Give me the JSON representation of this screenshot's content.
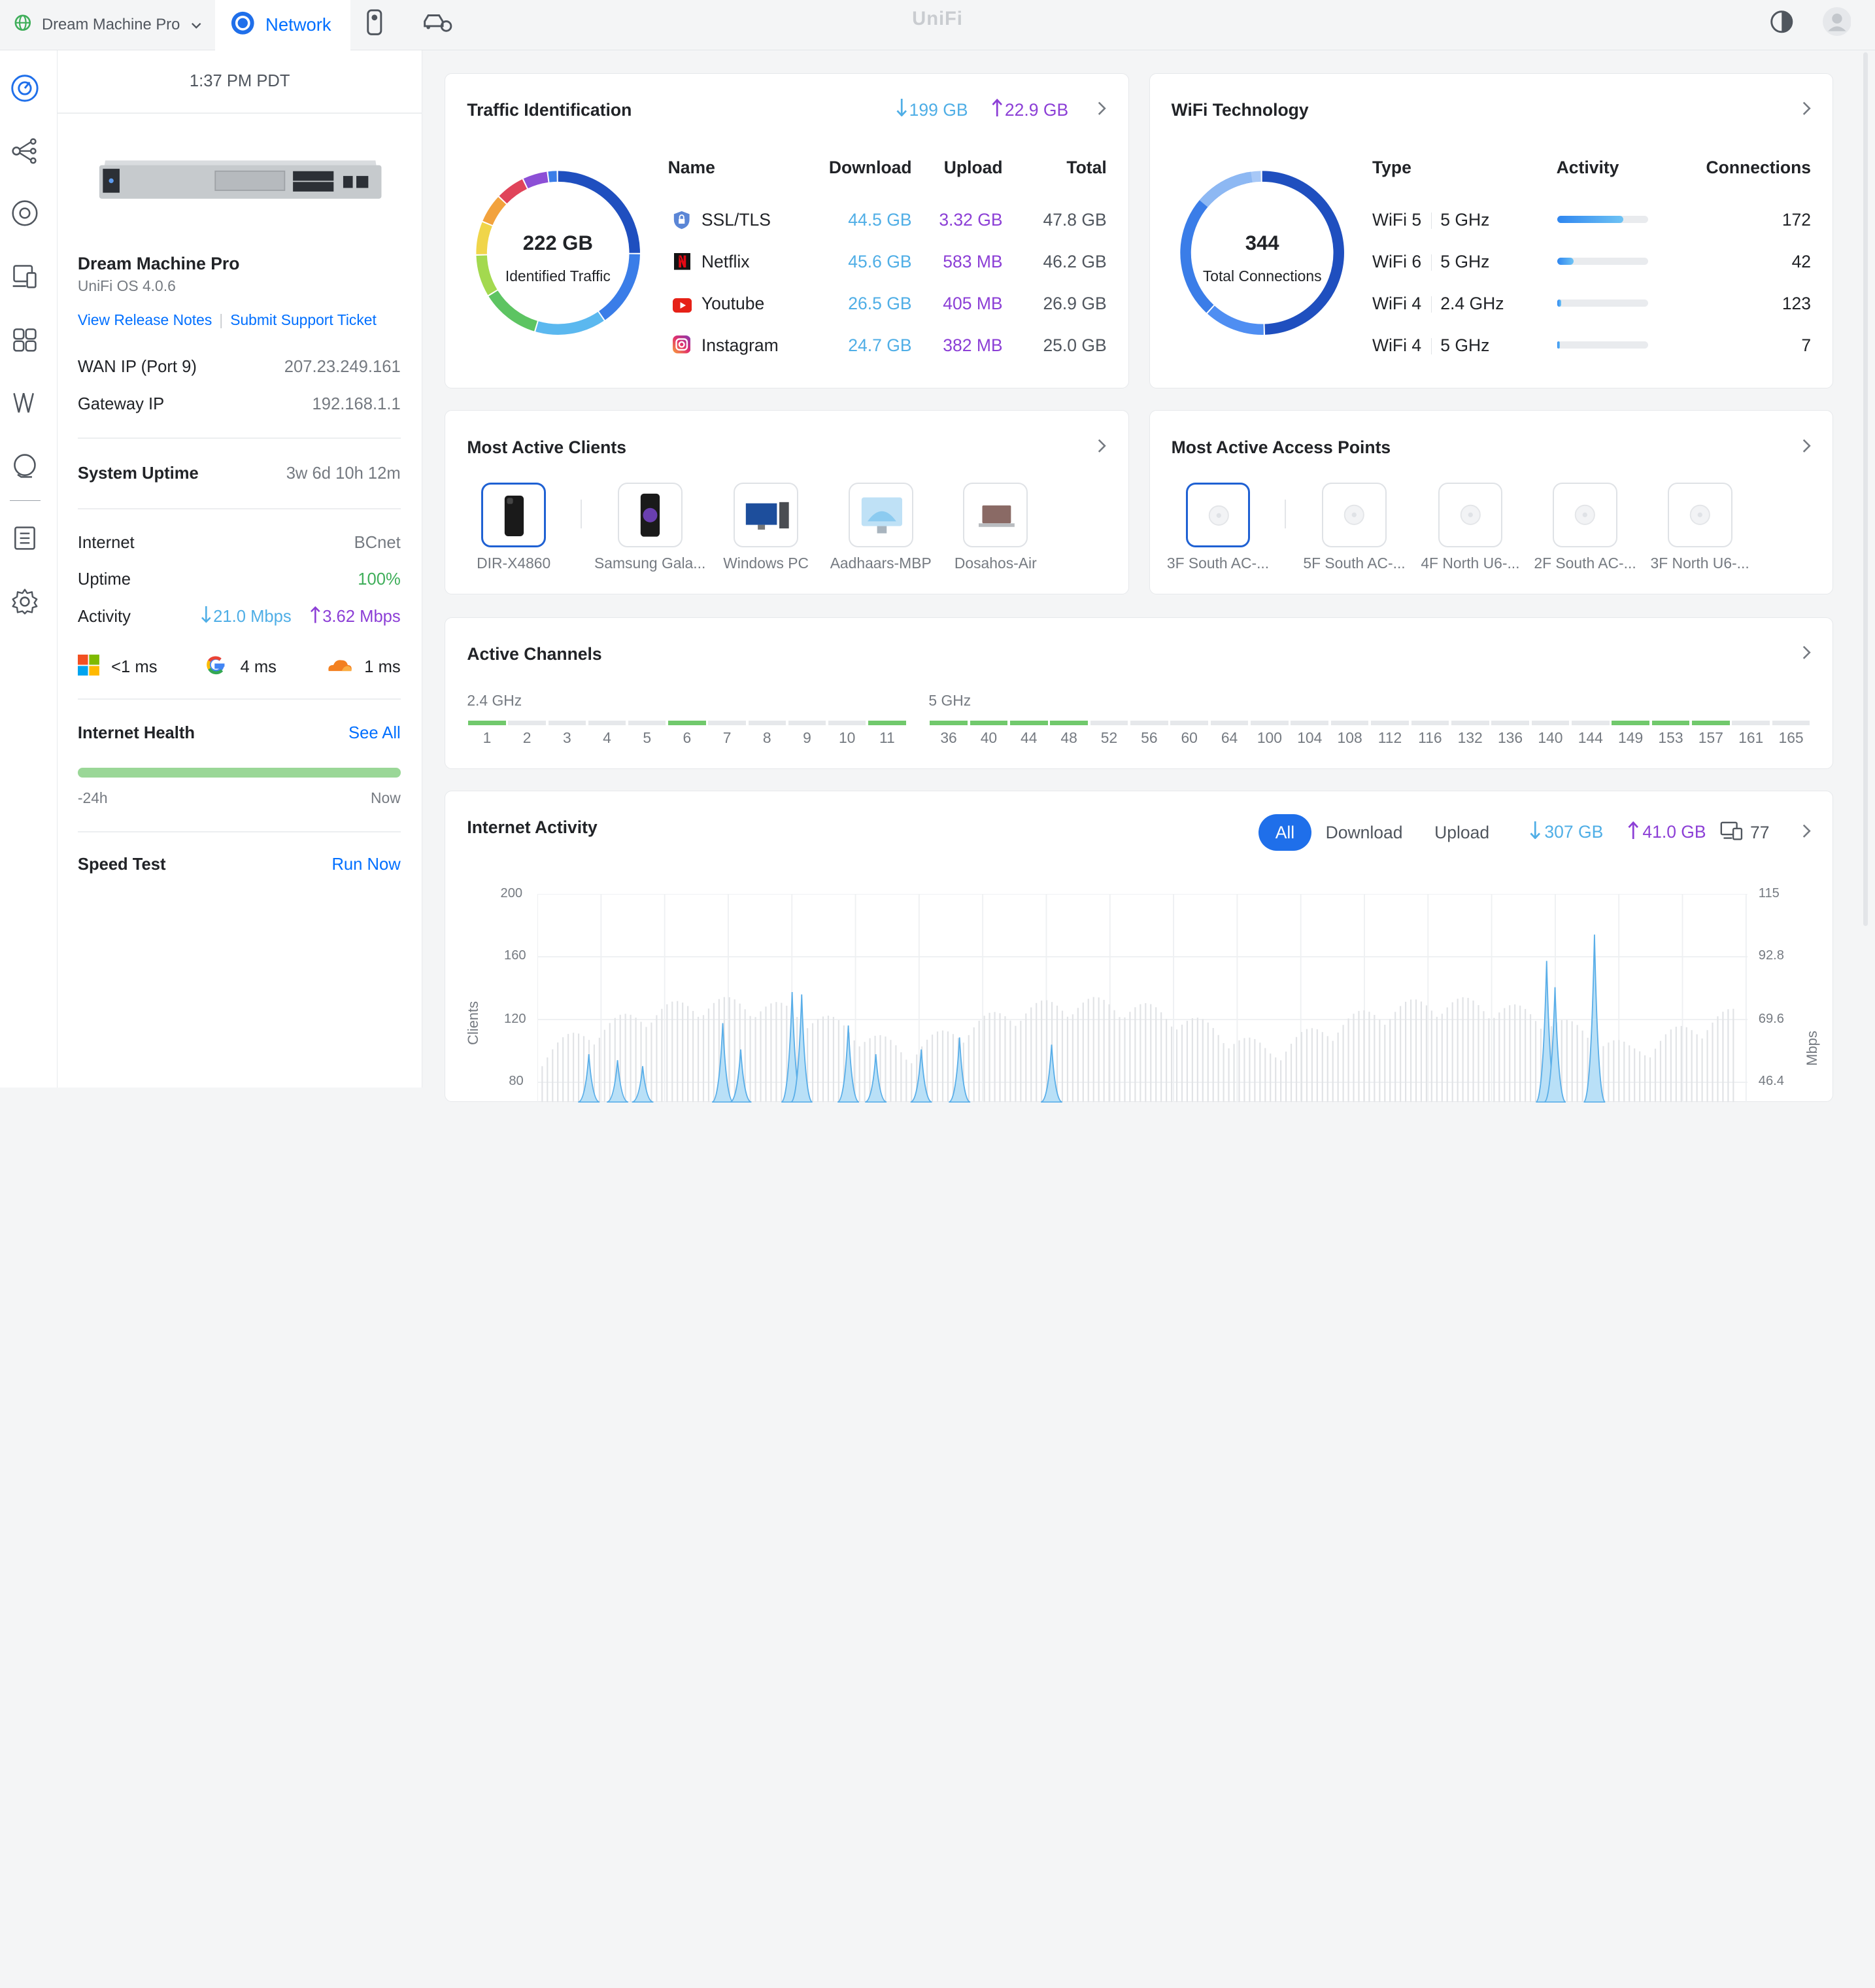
{
  "topbar": {
    "device": "Dream Machine Pro",
    "app_tab": "Network",
    "logo": "UniFi"
  },
  "sidebar": {
    "time": "1:37 PM PDT",
    "device_name": "Dream Machine Pro",
    "os_version": "UniFi OS 4.0.6",
    "release_notes": "View Release Notes",
    "support_ticket": "Submit Support Ticket",
    "wan_label": "WAN IP (Port 9)",
    "wan_value": "207.23.249.161",
    "gateway_label": "Gateway IP",
    "gateway_value": "192.168.1.1",
    "uptime_label": "System Uptime",
    "uptime_value": "3w 6d 10h 12m",
    "internet_label": "Internet",
    "internet_value": "BCnet",
    "uptime2_label": "Uptime",
    "uptime2_value": "100%",
    "activity_label": "Activity",
    "activity_down": "21.0 Mbps",
    "activity_up": "3.62 Mbps",
    "latency": [
      {
        "icon": "microsoft-icon",
        "value": "<1 ms"
      },
      {
        "icon": "google-icon",
        "value": "4 ms"
      },
      {
        "icon": "cloudflare-icon",
        "value": "1 ms"
      }
    ],
    "health_label": "Internet Health",
    "health_link": "See All",
    "health_start": "-24h",
    "health_end": "Now",
    "speed_label": "Speed Test",
    "speed_link": "Run Now"
  },
  "traffic": {
    "title": "Traffic Identification",
    "down_total": "199 GB",
    "up_total": "22.9 GB",
    "center_value": "222 GB",
    "center_label": "Identified Traffic",
    "headers": [
      "Name",
      "Download",
      "Upload",
      "Total"
    ],
    "rows": [
      {
        "icon": "shield-icon",
        "name": "SSL/TLS",
        "download": "44.5 GB",
        "upload": "3.32 GB",
        "total": "47.8 GB"
      },
      {
        "icon": "netflix-icon",
        "name": "Netflix",
        "download": "45.6 GB",
        "upload": "583 MB",
        "total": "46.2 GB"
      },
      {
        "icon": "youtube-icon",
        "name": "Youtube",
        "download": "26.5 GB",
        "upload": "405 MB",
        "total": "26.9 GB"
      },
      {
        "icon": "instagram-icon",
        "name": "Instagram",
        "download": "24.7 GB",
        "upload": "382 MB",
        "total": "25.0 GB"
      }
    ]
  },
  "wifi": {
    "title": "WiFi Technology",
    "center_value": "344",
    "center_label": "Total Connections",
    "headers": [
      "Type",
      "Activity",
      "Connections"
    ],
    "rows": [
      {
        "type": "WiFi 5",
        "band": "5 GHz",
        "activity": 0.72,
        "connections": "172"
      },
      {
        "type": "WiFi 6",
        "band": "5 GHz",
        "activity": 0.18,
        "connections": "42"
      },
      {
        "type": "WiFi 4",
        "band": "2.4 GHz",
        "activity": 0.04,
        "connections": "123"
      },
      {
        "type": "WiFi 4",
        "band": "5 GHz",
        "activity": 0.02,
        "connections": "7"
      }
    ]
  },
  "clients": {
    "title": "Most Active Clients",
    "items": [
      "DIR-X4860",
      "Samsung Gala...",
      "Windows PC",
      "Aadhaars-MBP",
      "Dosahos-Air"
    ]
  },
  "aps": {
    "title": "Most Active Access Points",
    "items": [
      "3F South AC-...",
      "5F South AC-...",
      "4F North U6-...",
      "2F South AC-...",
      "3F North U6-..."
    ]
  },
  "channels": {
    "title": "Active Channels",
    "band24_label": "2.4 GHz",
    "band5_label": "5 GHz",
    "band24": [
      "1",
      "2",
      "3",
      "4",
      "5",
      "6",
      "7",
      "8",
      "9",
      "10",
      "11"
    ],
    "band24_active": [
      "1",
      "6",
      "11"
    ],
    "band5": [
      "36",
      "40",
      "44",
      "48",
      "52",
      "56",
      "60",
      "64",
      "100",
      "104",
      "108",
      "112",
      "116",
      "132",
      "136",
      "140",
      "144",
      "149",
      "153",
      "157",
      "161",
      "165"
    ],
    "band5_active": [
      "36",
      "40",
      "44",
      "48",
      "149",
      "153",
      "157"
    ]
  },
  "activity": {
    "title": "Internet Activity",
    "filters": [
      "All",
      "Download",
      "Upload"
    ],
    "down_total": "307 GB",
    "up_total": "41.0 GB",
    "clients_count": "77",
    "y_left_label": "Clients",
    "y_right_label": "Mbps",
    "y_left_ticks": [
      "200",
      "160",
      "120",
      "80"
    ],
    "y_right_ticks": [
      "115",
      "92.8",
      "69.6",
      "46.4"
    ]
  },
  "colors": {
    "accent": "#006fff",
    "download": "#4faee6",
    "upload": "#8c3fd6",
    "good": "#71c96c",
    "donut_dark": "#1f4fbf"
  }
}
